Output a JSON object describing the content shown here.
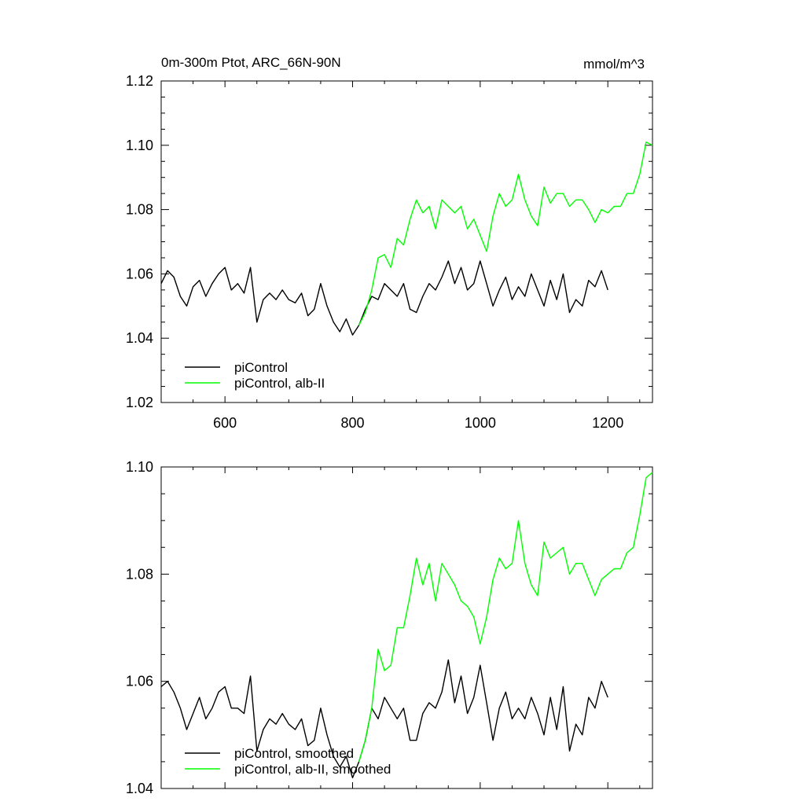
{
  "chart_data": [
    {
      "type": "line",
      "title": "0m-300m Ptot, ARC_66N-90N",
      "units": "mmol/m^3",
      "xlim": [
        500,
        1270
      ],
      "ylim": [
        1.02,
        1.12
      ],
      "x_ticks": [
        600,
        800,
        1000,
        1200
      ],
      "y_ticks": [
        "1.02",
        "1.04",
        "1.06",
        "1.08",
        "1.10",
        "1.12"
      ],
      "y_tick_values": [
        1.02,
        1.04,
        1.06,
        1.08,
        1.1,
        1.12
      ],
      "legend_position": "bottom-left",
      "series": [
        {
          "name": "piControl",
          "color": "#000000",
          "x": [
            500,
            510,
            520,
            530,
            540,
            550,
            560,
            570,
            580,
            590,
            600,
            610,
            620,
            630,
            640,
            650,
            660,
            670,
            680,
            690,
            700,
            710,
            720,
            730,
            740,
            750,
            760,
            770,
            780,
            790,
            800,
            810,
            820,
            830,
            840,
            850,
            860,
            870,
            880,
            890,
            900,
            910,
            920,
            930,
            940,
            950,
            960,
            970,
            980,
            990,
            1000,
            1010,
            1020,
            1030,
            1040,
            1050,
            1060,
            1070,
            1080,
            1090,
            1100,
            1110,
            1120,
            1130,
            1140,
            1150,
            1160,
            1170,
            1180,
            1190,
            1200
          ],
          "values": [
            1.057,
            1.061,
            1.059,
            1.053,
            1.05,
            1.056,
            1.058,
            1.053,
            1.057,
            1.06,
            1.062,
            1.055,
            1.057,
            1.054,
            1.062,
            1.045,
            1.052,
            1.054,
            1.052,
            1.055,
            1.052,
            1.051,
            1.054,
            1.047,
            1.049,
            1.057,
            1.05,
            1.045,
            1.042,
            1.046,
            1.041,
            1.044,
            1.049,
            1.053,
            1.052,
            1.057,
            1.055,
            1.053,
            1.057,
            1.049,
            1.048,
            1.053,
            1.057,
            1.055,
            1.059,
            1.064,
            1.057,
            1.062,
            1.055,
            1.057,
            1.064,
            1.057,
            1.05,
            1.055,
            1.059,
            1.052,
            1.056,
            1.053,
            1.06,
            1.055,
            1.05,
            1.058,
            1.052,
            1.06,
            1.048,
            1.052,
            1.05,
            1.058,
            1.056,
            1.061,
            1.055
          ]
        },
        {
          "name": "piControl, alb-II",
          "color": "#00ff00",
          "x": [
            810,
            820,
            830,
            840,
            850,
            860,
            870,
            880,
            890,
            900,
            910,
            920,
            930,
            940,
            950,
            960,
            970,
            980,
            990,
            1000,
            1010,
            1020,
            1030,
            1040,
            1050,
            1060,
            1070,
            1080,
            1090,
            1100,
            1110,
            1120,
            1130,
            1140,
            1150,
            1160,
            1170,
            1180,
            1190,
            1200,
            1210,
            1220,
            1230,
            1240,
            1250,
            1260,
            1270
          ],
          "values": [
            1.044,
            1.048,
            1.055,
            1.065,
            1.066,
            1.062,
            1.071,
            1.069,
            1.077,
            1.083,
            1.079,
            1.081,
            1.074,
            1.083,
            1.081,
            1.079,
            1.081,
            1.074,
            1.077,
            1.072,
            1.067,
            1.078,
            1.085,
            1.081,
            1.083,
            1.091,
            1.083,
            1.078,
            1.075,
            1.087,
            1.082,
            1.085,
            1.085,
            1.081,
            1.083,
            1.083,
            1.08,
            1.076,
            1.08,
            1.079,
            1.081,
            1.081,
            1.085,
            1.085,
            1.091,
            1.101,
            1.1
          ]
        }
      ]
    },
    {
      "type": "line",
      "xlim": [
        500,
        1270
      ],
      "ylim": [
        1.04,
        1.1
      ],
      "x_ticks": [
        600,
        800,
        1000,
        1200
      ],
      "y_ticks": [
        "1.04",
        "1.06",
        "1.08",
        "1.10"
      ],
      "y_tick_values": [
        1.04,
        1.06,
        1.08,
        1.1
      ],
      "legend_position": "bottom-left",
      "series": [
        {
          "name": "piControl, smoothed",
          "color": "#000000",
          "x": [
            500,
            510,
            520,
            530,
            540,
            550,
            560,
            570,
            580,
            590,
            600,
            610,
            620,
            630,
            640,
            650,
            660,
            670,
            680,
            690,
            700,
            710,
            720,
            730,
            740,
            750,
            760,
            770,
            780,
            790,
            800,
            810,
            820,
            830,
            840,
            850,
            860,
            870,
            880,
            890,
            900,
            910,
            920,
            930,
            940,
            950,
            960,
            970,
            980,
            990,
            1000,
            1010,
            1020,
            1030,
            1040,
            1050,
            1060,
            1070,
            1080,
            1090,
            1100,
            1110,
            1120,
            1130,
            1140,
            1150,
            1160,
            1170,
            1180,
            1190,
            1200
          ],
          "values": [
            1.059,
            1.06,
            1.058,
            1.055,
            1.051,
            1.054,
            1.057,
            1.053,
            1.055,
            1.058,
            1.059,
            1.055,
            1.055,
            1.054,
            1.061,
            1.047,
            1.051,
            1.053,
            1.052,
            1.054,
            1.052,
            1.051,
            1.053,
            1.048,
            1.049,
            1.055,
            1.05,
            1.046,
            1.044,
            1.046,
            1.042,
            1.045,
            1.049,
            1.055,
            1.053,
            1.057,
            1.055,
            1.053,
            1.055,
            1.049,
            1.049,
            1.054,
            1.056,
            1.055,
            1.058,
            1.064,
            1.056,
            1.061,
            1.054,
            1.057,
            1.063,
            1.056,
            1.049,
            1.055,
            1.058,
            1.053,
            1.055,
            1.053,
            1.057,
            1.054,
            1.05,
            1.057,
            1.051,
            1.059,
            1.047,
            1.052,
            1.05,
            1.057,
            1.055,
            1.06,
            1.057
          ]
        },
        {
          "name": "piControl, alb-II, smoothed",
          "color": "#00ff00",
          "x": [
            810,
            820,
            830,
            840,
            850,
            860,
            870,
            880,
            890,
            900,
            910,
            920,
            930,
            940,
            950,
            960,
            970,
            980,
            990,
            1000,
            1010,
            1020,
            1030,
            1040,
            1050,
            1060,
            1070,
            1080,
            1090,
            1100,
            1110,
            1120,
            1130,
            1140,
            1150,
            1160,
            1170,
            1180,
            1190,
            1200,
            1210,
            1220,
            1230,
            1240,
            1250,
            1260,
            1270
          ],
          "values": [
            1.045,
            1.049,
            1.055,
            1.066,
            1.062,
            1.063,
            1.07,
            1.07,
            1.076,
            1.083,
            1.078,
            1.082,
            1.075,
            1.082,
            1.08,
            1.078,
            1.075,
            1.074,
            1.072,
            1.067,
            1.072,
            1.079,
            1.083,
            1.081,
            1.082,
            1.09,
            1.082,
            1.078,
            1.076,
            1.086,
            1.083,
            1.084,
            1.085,
            1.08,
            1.082,
            1.082,
            1.079,
            1.076,
            1.079,
            1.08,
            1.081,
            1.081,
            1.084,
            1.085,
            1.091,
            1.098,
            1.099
          ]
        }
      ]
    }
  ]
}
